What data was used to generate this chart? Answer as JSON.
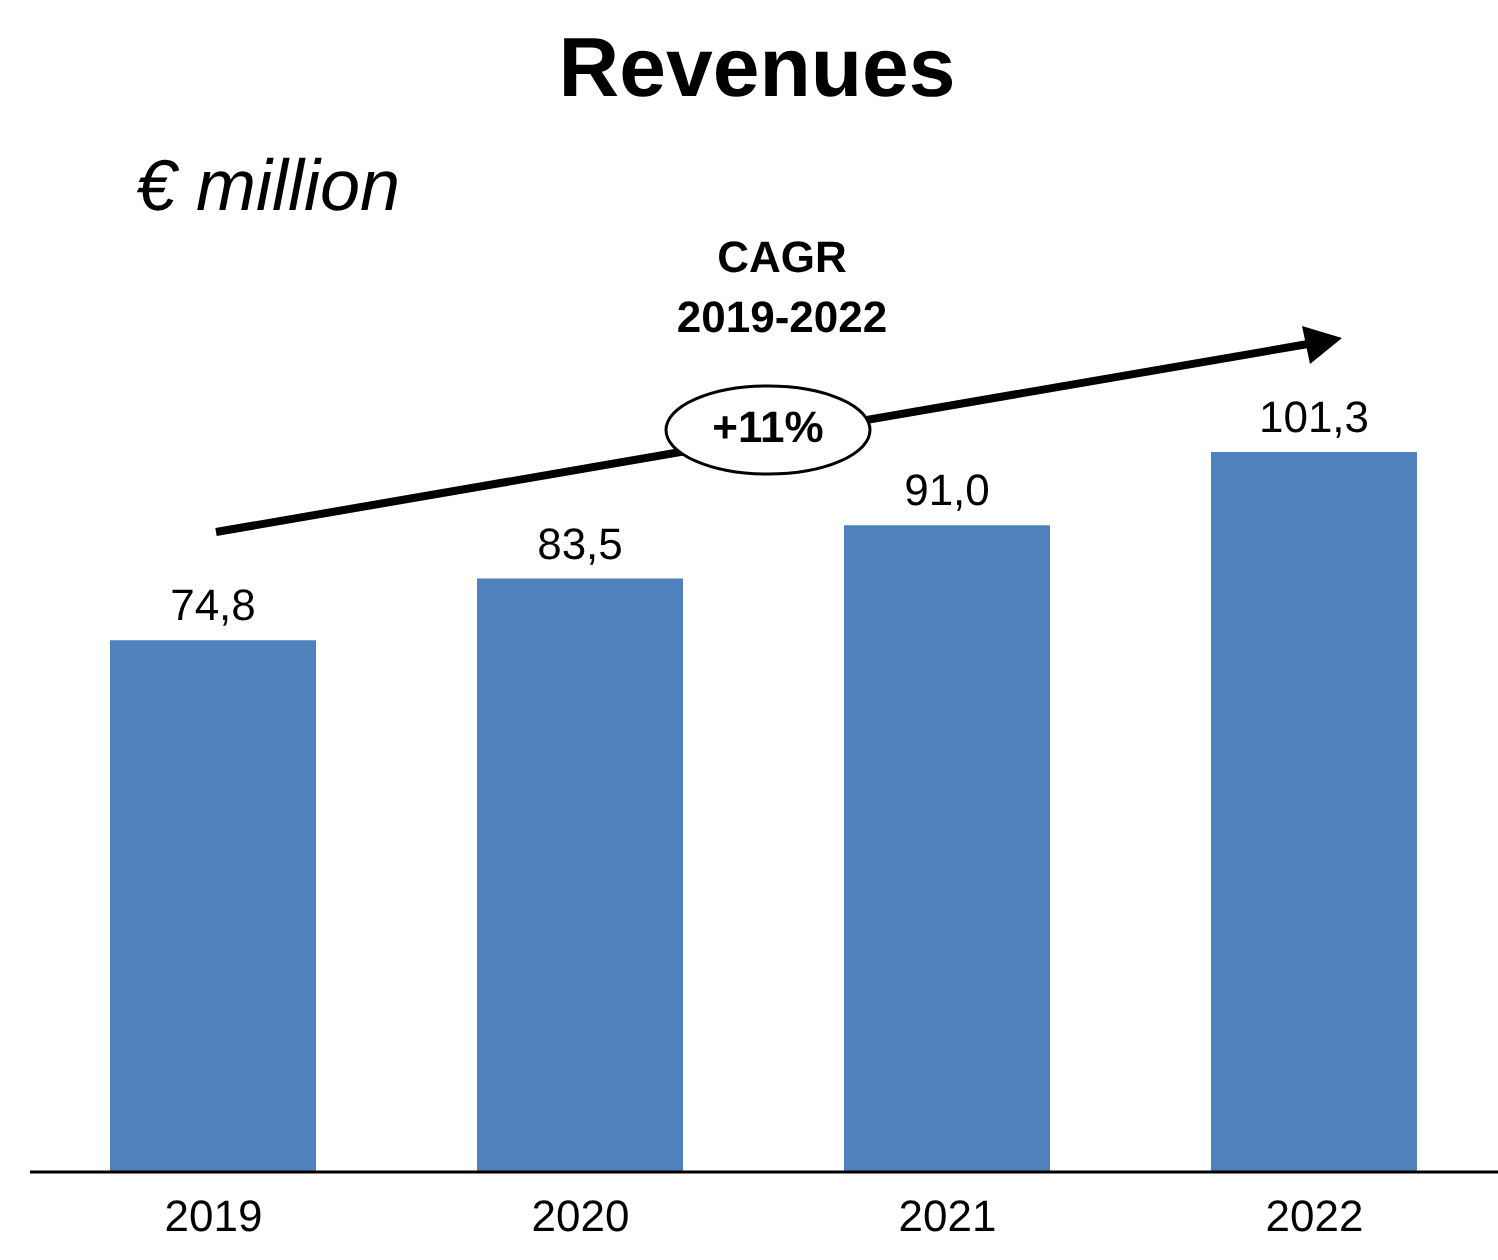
{
  "chart_data": {
    "type": "bar",
    "title": "Revenues",
    "subtitle": "€ million",
    "categories": [
      "2019",
      "2020",
      "2021",
      "2022"
    ],
    "values": [
      74.8,
      83.5,
      91.0,
      101.3
    ],
    "value_labels": [
      "74,8",
      "83,5",
      "91,0",
      "101,3"
    ],
    "color": "#4f81bd",
    "annotations": [
      "CAGR\n2019-2022",
      "+11%"
    ],
    "grid": false,
    "legend": false
  }
}
